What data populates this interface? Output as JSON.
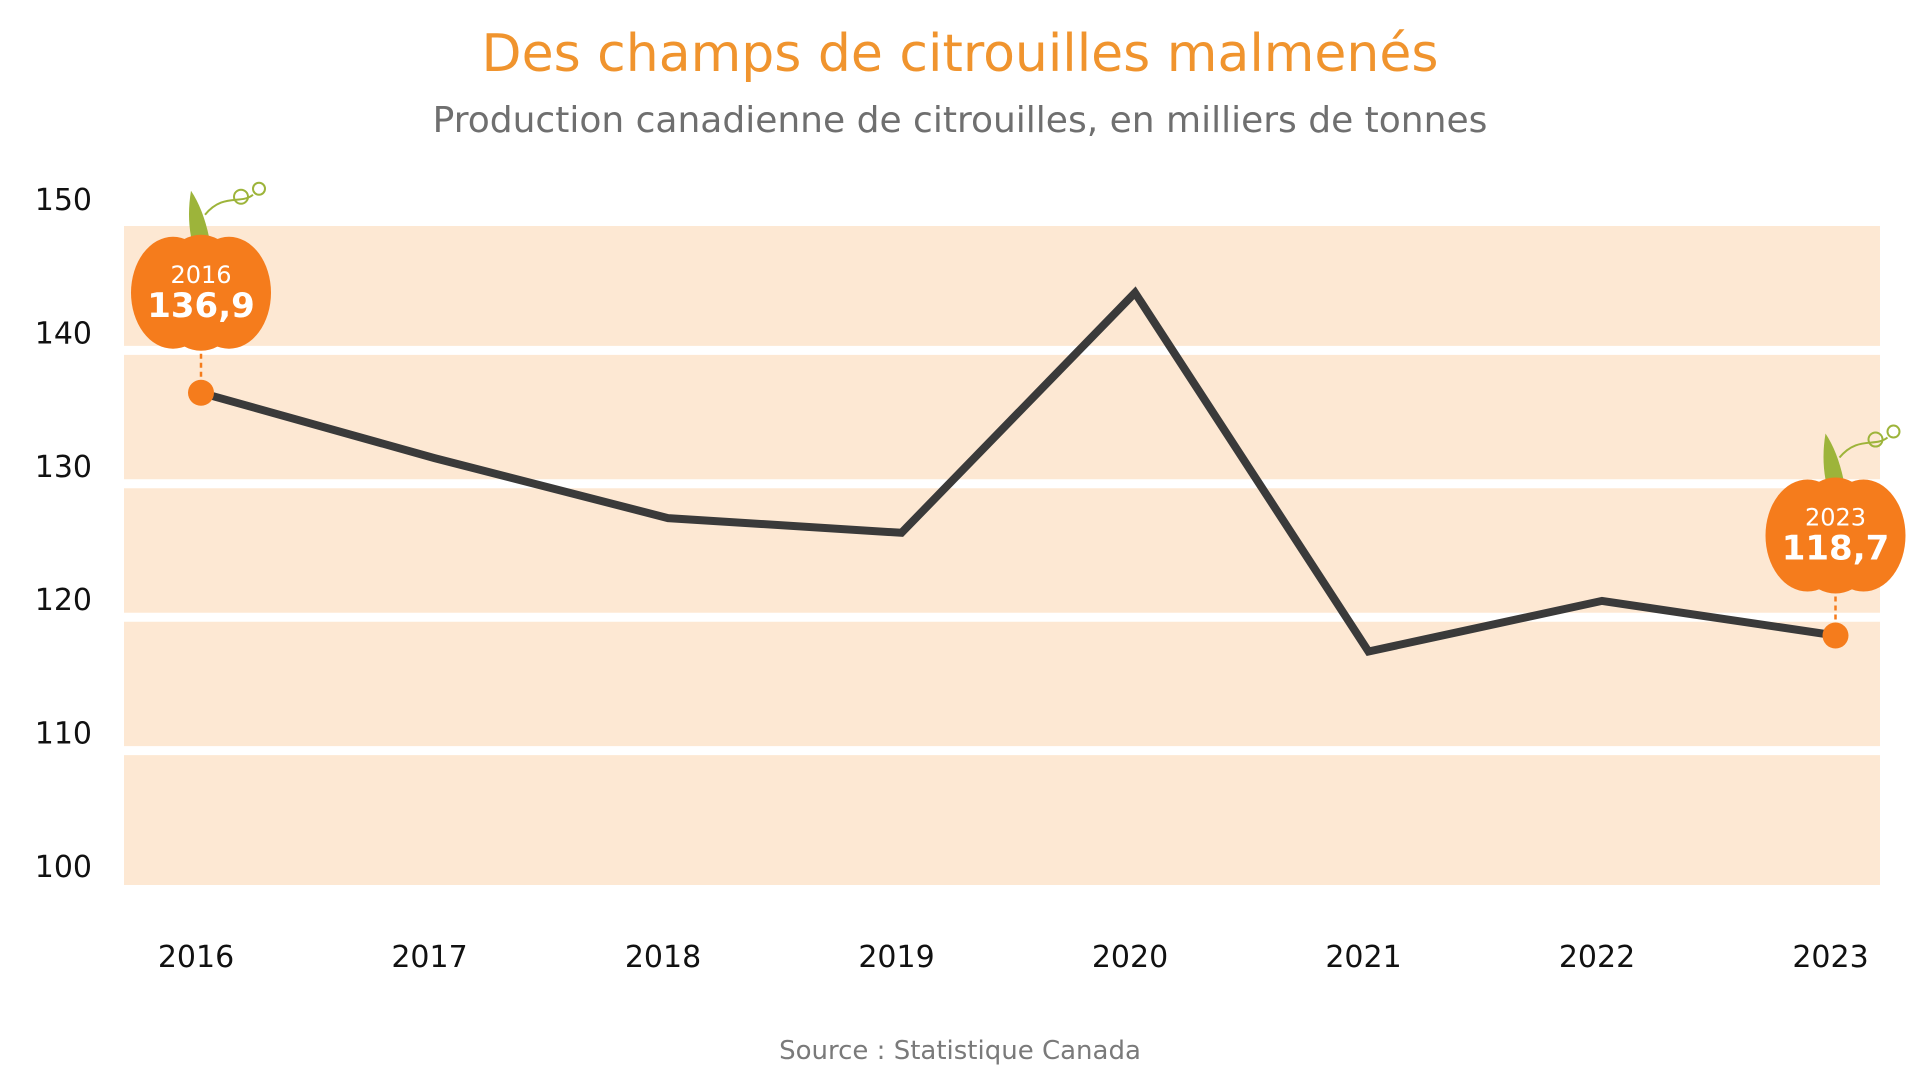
{
  "chart_data": {
    "type": "line",
    "title": "Des champs de citrouilles malmenés",
    "subtitle": "Production canadienne de citrouilles, en milliers de tonnes",
    "source": "Source : Statistique Canada",
    "x": [
      "2016",
      "2017",
      "2018",
      "2019",
      "2020",
      "2021",
      "2022",
      "2023"
    ],
    "series": [
      {
        "values": [
          136.9,
          132.0,
          127.5,
          126.4,
          144.4,
          117.5,
          121.3,
          118.7
        ]
      }
    ],
    "ylim": [
      100,
      150
    ],
    "yticks": [
      "100",
      "110",
      "120",
      "130",
      "140",
      "150"
    ],
    "xlabel": "",
    "ylabel": "",
    "grid": true,
    "callouts": [
      {
        "year_label": "2016",
        "value_label": "136,9",
        "index": 0
      },
      {
        "year_label": "2023",
        "value_label": "118,7",
        "index": 7
      }
    ],
    "colors": {
      "title": "#F0942E",
      "band": "#FDE8D3",
      "line": "#3a3a3a",
      "marker": "#F57C1C",
      "pumpkin": "#F57C1C",
      "stem": "#9DB43A"
    }
  }
}
